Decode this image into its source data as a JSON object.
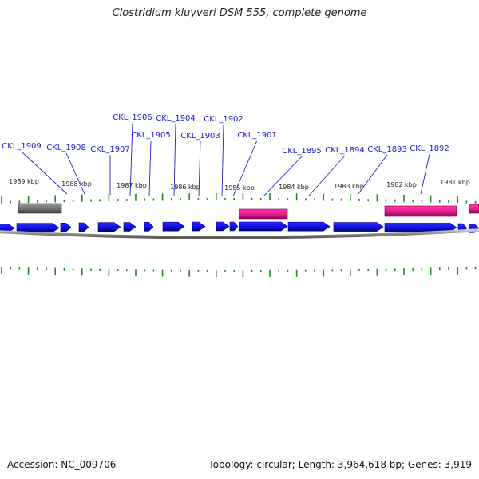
{
  "title": "Clostridium kluyveri DSM 555, complete genome",
  "footer": {
    "accession": "Accession: NC_009706",
    "summary": "Topology: circular; Length: 3,964,618 bp; Genes: 3,919"
  },
  "colors": {
    "gene": "#1010e0",
    "gene_dark": "#000090",
    "rna": "#e0188c",
    "pseudo": "#6a6a6a",
    "tick": "#1e8a1e",
    "label": "#1a1acc",
    "leader": "#2222cc",
    "backbone": "#8a8a8a"
  },
  "scale": {
    "ticks_kbp": [
      "1989 kbp",
      "1988 kbp",
      "1987 kbp",
      "1986 kbp",
      "1985 kbp",
      "1984 kbp",
      "1983 kbp",
      "1982 kbp",
      "1981 kbp"
    ]
  },
  "gene_labels": [
    "CKL_1909",
    "CKL_1908",
    "CKL_1907",
    "CKL_1906",
    "CKL_1905",
    "CKL_1904",
    "CKL_1903",
    "CKL_1902",
    "CKL_1901",
    "CKL_1895",
    "CKL_1894",
    "CKL_1893",
    "CKL_1892"
  ]
}
